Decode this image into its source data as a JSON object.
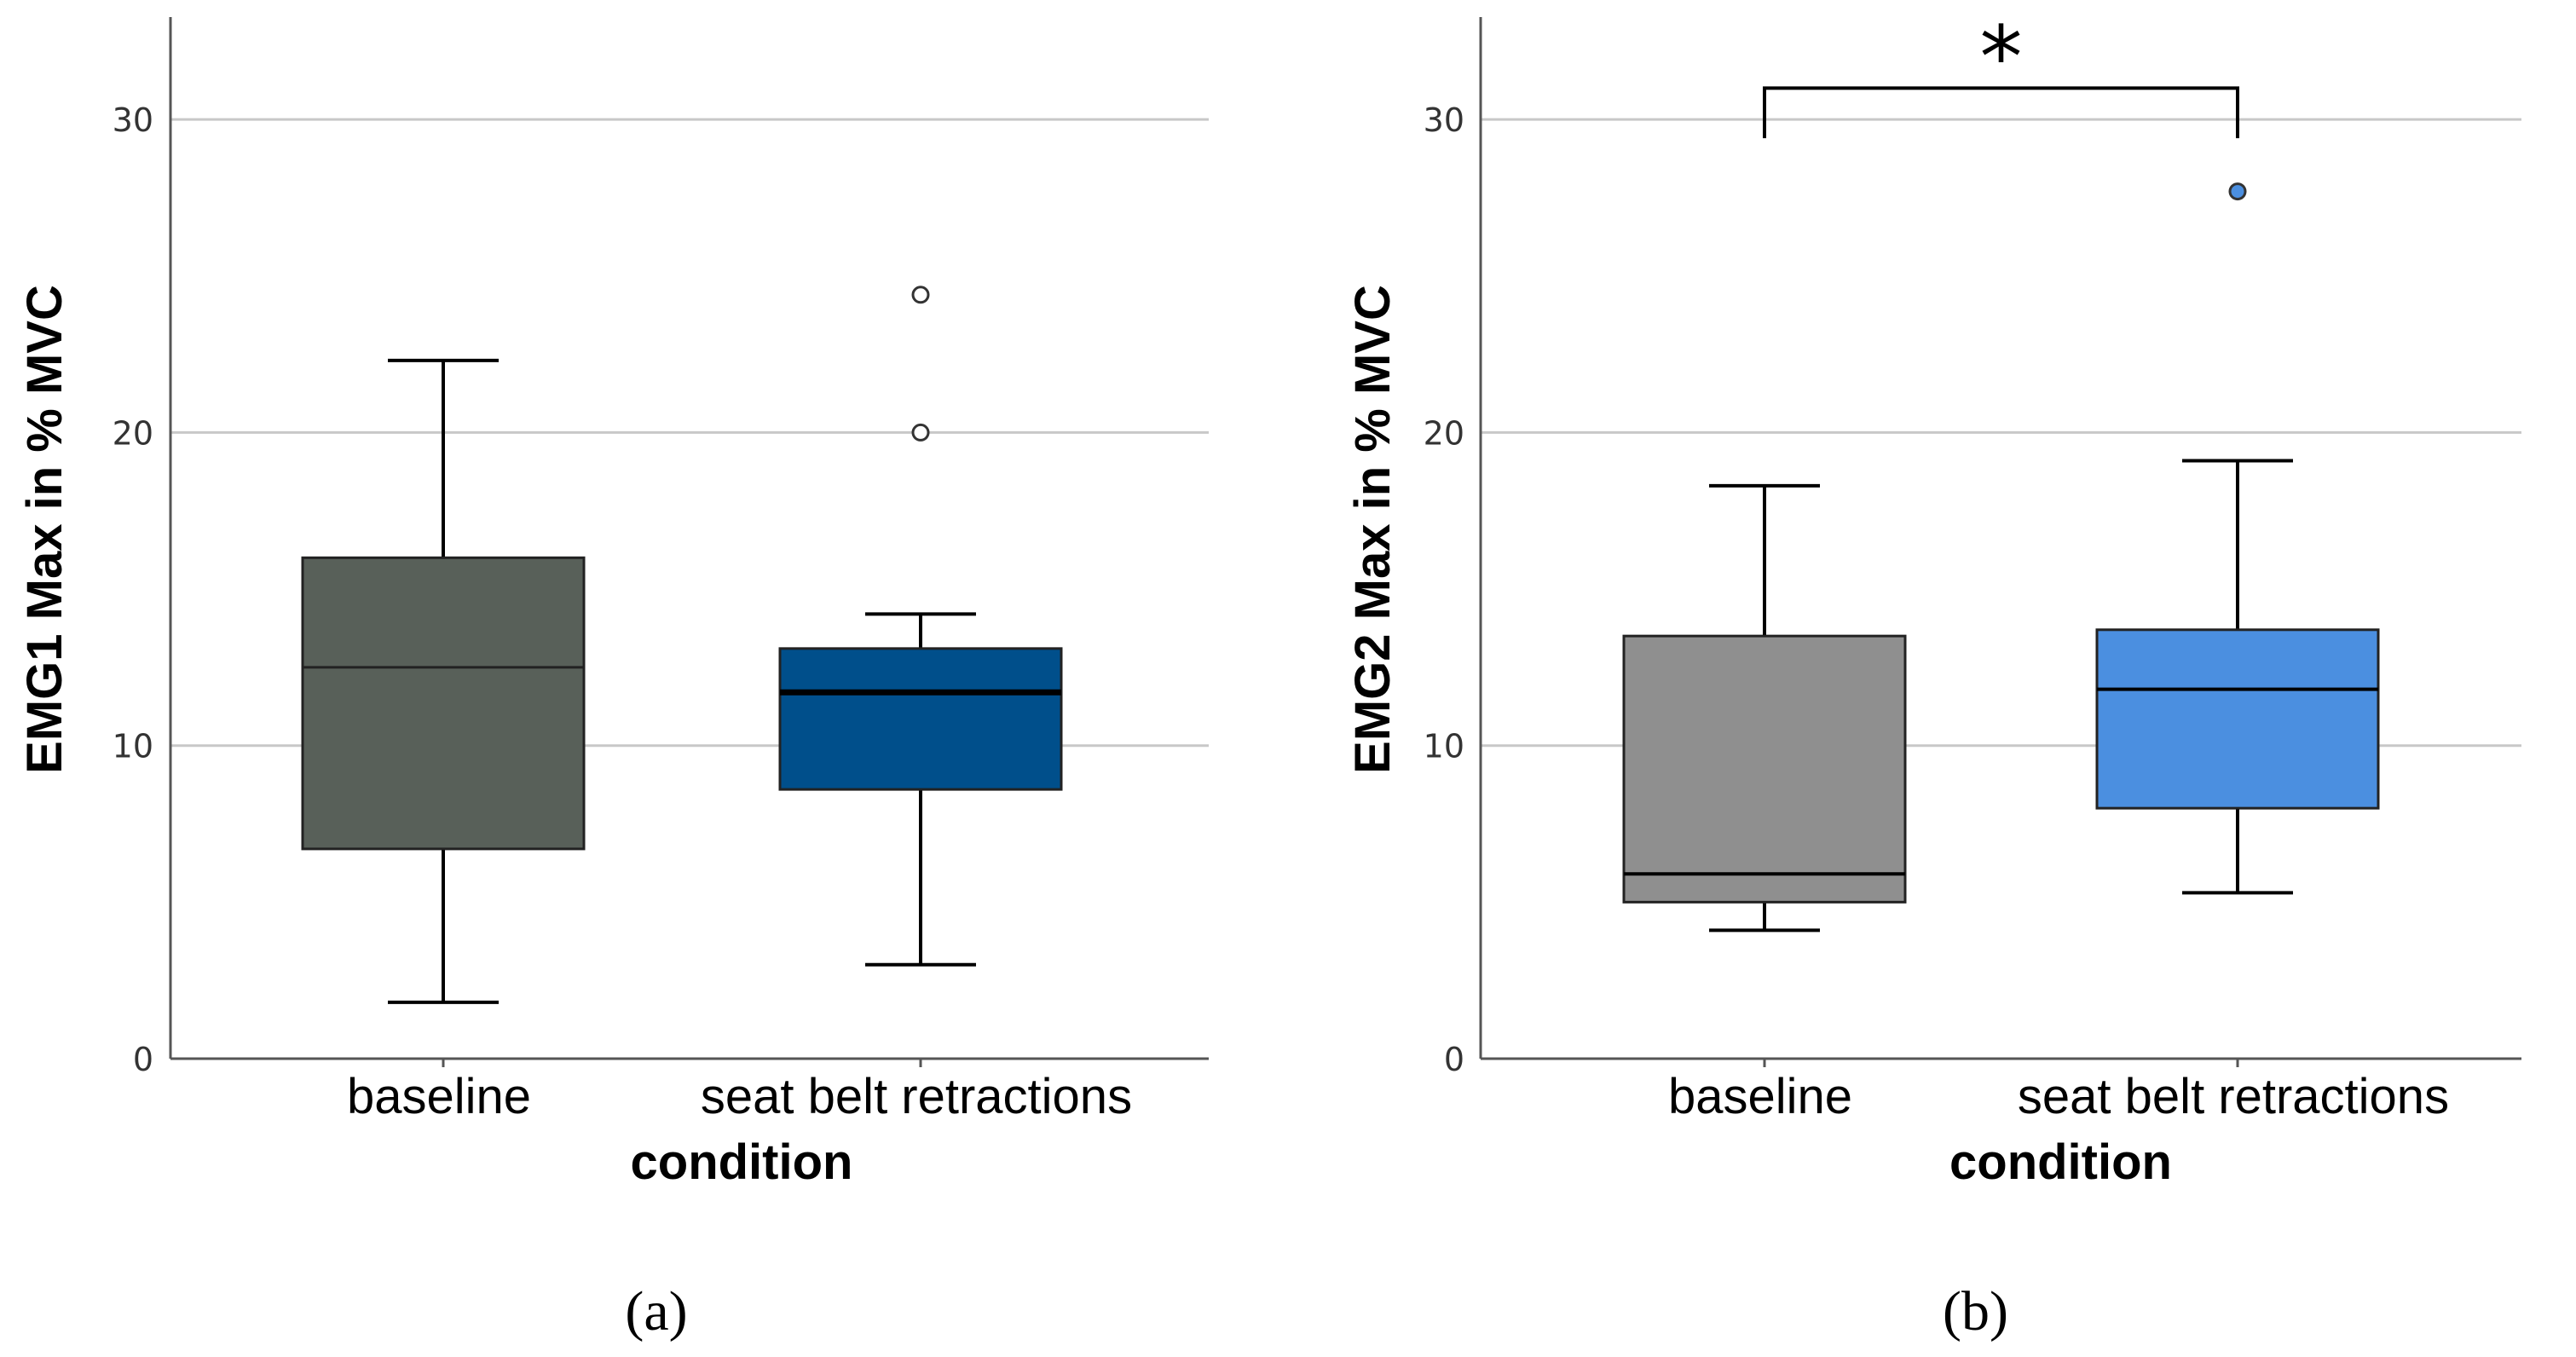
{
  "chart_data": [
    {
      "type": "box",
      "panel_label": "(a)",
      "xlabel": "condition",
      "ylabel": "EMG1 Max in % MVC",
      "ylim": [
        0,
        33
      ],
      "yticks": [
        "0",
        "10",
        "20",
        "30"
      ],
      "grid": true,
      "categories": [
        "baseline",
        "seat belt retractions"
      ],
      "boxes": [
        {
          "name": "baseline",
          "whisker_low": 1.8,
          "q1": 6.7,
          "median": 12.5,
          "q3": 16.0,
          "whisker_high": 22.3,
          "outliers": [],
          "fill": "#586059",
          "median_color": "#222222",
          "median_width": 3
        },
        {
          "name": "seat belt retractions",
          "whisker_low": 3.0,
          "q1": 8.6,
          "median": 11.7,
          "q3": 13.1,
          "whisker_high": 14.2,
          "outliers": [
            20.0,
            24.4
          ],
          "fill": "#004f8b",
          "median_color": "#000000",
          "median_width": 7,
          "outlier_fill": "#ffffff"
        }
      ],
      "significance": null
    },
    {
      "type": "box",
      "panel_label": "(b)",
      "xlabel": "condition",
      "ylabel": "EMG2 Max in % MVC",
      "ylim": [
        0,
        33
      ],
      "yticks": [
        "0",
        "10",
        "20",
        "30"
      ],
      "grid": true,
      "categories": [
        "baseline",
        "seat belt retractions"
      ],
      "boxes": [
        {
          "name": "baseline",
          "whisker_low": 4.1,
          "q1": 5.0,
          "median": 5.9,
          "q3": 13.5,
          "whisker_high": 18.3,
          "outliers": [],
          "fill": "#8f8f8f",
          "median_color": "#000000",
          "median_width": 4
        },
        {
          "name": "seat belt retractions",
          "whisker_low": 5.3,
          "q1": 8.0,
          "median": 11.8,
          "q3": 13.7,
          "whisker_high": 19.1,
          "outliers": [
            27.7
          ],
          "fill": "#4b8fe0",
          "median_color": "#000000",
          "median_width": 4,
          "outlier_fill": "#4b8fe0"
        }
      ],
      "significance": {
        "from": 0,
        "to": 1,
        "level": 31.0,
        "tick_bottom": 29.4,
        "label": "*"
      }
    }
  ]
}
